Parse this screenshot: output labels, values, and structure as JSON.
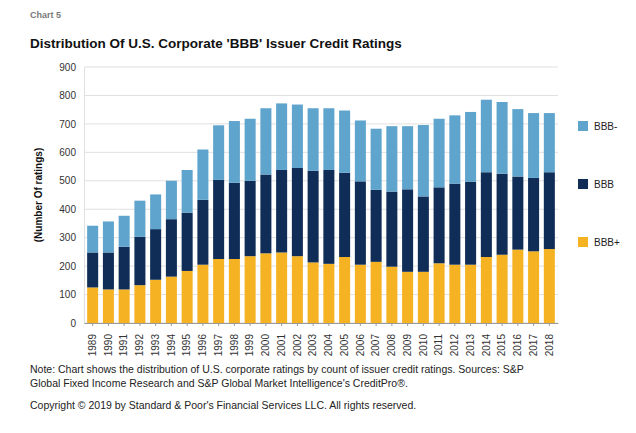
{
  "chart_data": {
    "type": "bar",
    "stacked": true,
    "supertitle": "Chart 5",
    "title": "Distribution Of U.S. Corporate 'BBB' Issuer Credit Ratings",
    "y_label": "(Number Of ratings)",
    "annotations": [
      "Note: Chart shows the distribution of U.S. corporate ratings by count of issuer credit ratings. Sources: S&P",
      "Global Fixed Income Research and S&P Global Market Intelligence's CreditPro®.",
      "Copyright © 2019 by Standard & Poor's Financial Services LLC. All rights reserved."
    ],
    "categories": [
      "1989",
      "1990",
      "1991",
      "1992",
      "1993",
      "1994",
      "1995",
      "1996",
      "1997",
      "1998",
      "1999",
      "2000",
      "2001",
      "2002",
      "2003",
      "2004",
      "2005",
      "2006",
      "2007",
      "2008",
      "2009",
      "2010",
      "2011",
      "2012",
      "2013",
      "2014",
      "2015",
      "2016",
      "2017",
      "2018"
    ],
    "series": [
      {
        "name": "BBB+",
        "color": "#f5b324",
        "values": [
          125,
          118,
          118,
          133,
          152,
          163,
          183,
          205,
          225,
          225,
          235,
          245,
          248,
          235,
          213,
          208,
          232,
          205,
          215,
          198,
          180,
          180,
          210,
          205,
          205,
          232,
          240,
          258,
          252,
          260
        ]
      },
      {
        "name": "BBB",
        "color": "#0f2d57",
        "values": [
          123,
          130,
          150,
          170,
          178,
          202,
          205,
          228,
          278,
          268,
          265,
          277,
          290,
          310,
          322,
          330,
          296,
          293,
          253,
          264,
          290,
          265,
          267,
          285,
          292,
          298,
          285,
          257,
          258,
          270
        ]
      },
      {
        "name": "BBB-",
        "color": "#5fa4cc",
        "values": [
          94,
          109,
          109,
          127,
          122,
          135,
          150,
          177,
          192,
          217,
          218,
          233,
          234,
          223,
          220,
          217,
          219,
          214,
          215,
          230,
          222,
          251,
          241,
          240,
          245,
          255,
          252,
          237,
          228,
          208
        ]
      }
    ],
    "ylim": [
      0,
      900
    ],
    "yticks": [
      0,
      100,
      200,
      300,
      400,
      500,
      600,
      700,
      800,
      900
    ],
    "grid": true,
    "legend": "right"
  }
}
